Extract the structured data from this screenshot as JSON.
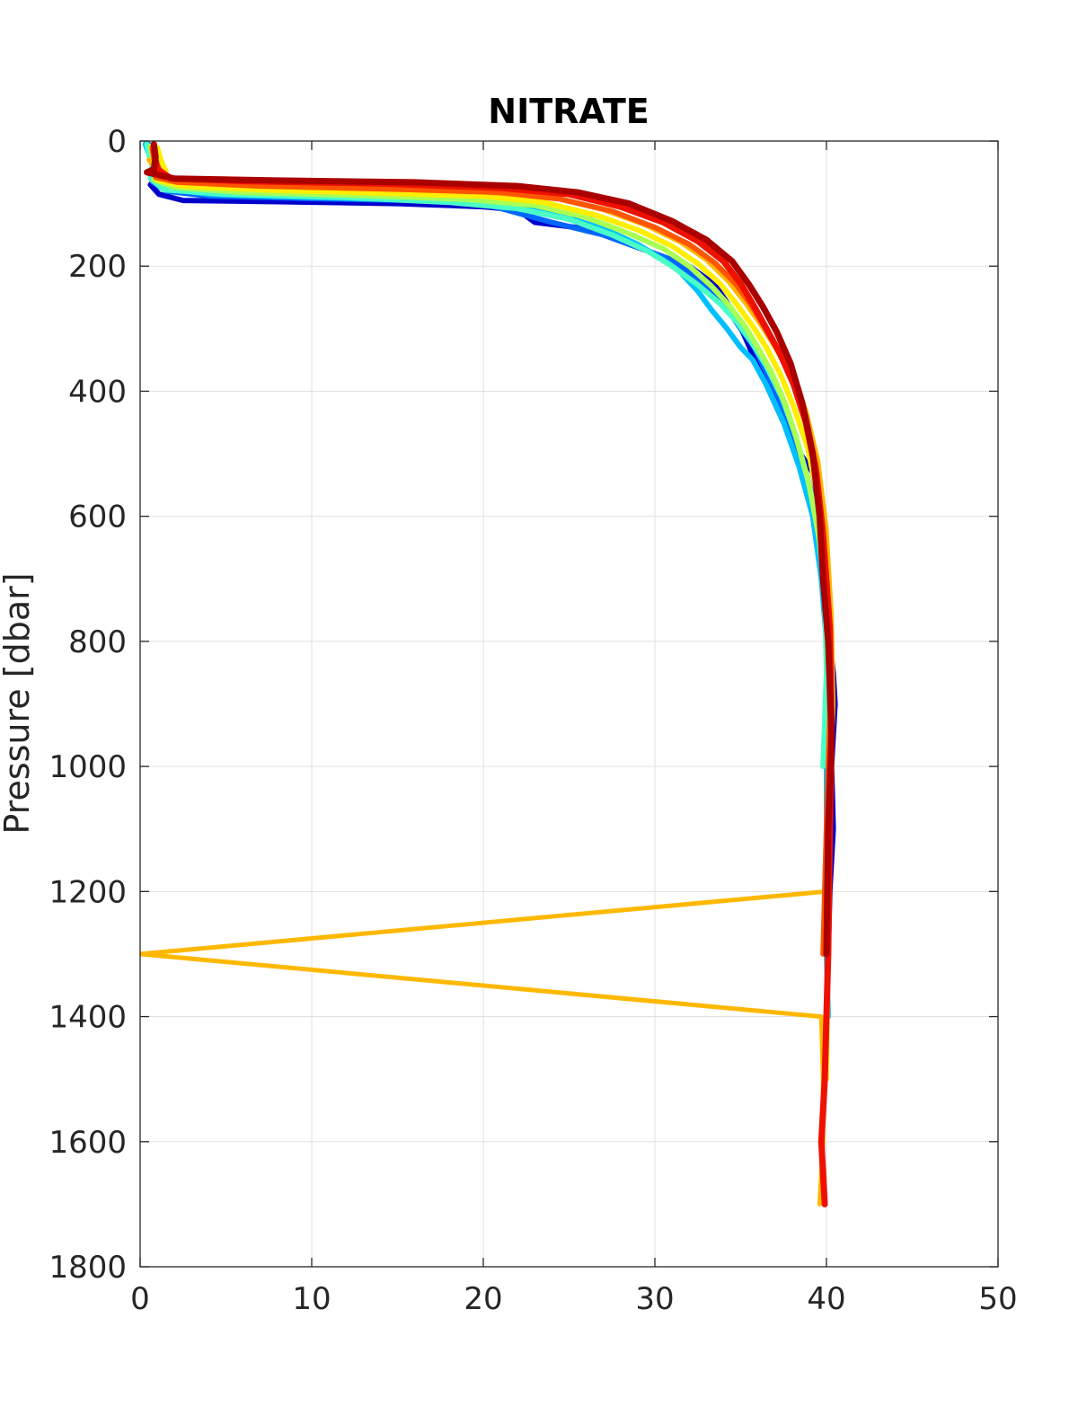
{
  "chart_data": {
    "type": "line",
    "title": "NITRATE",
    "xlabel": "",
    "ylabel": "Pressure [dbar]",
    "xlim": [
      0,
      50
    ],
    "ylim": [
      0,
      1800
    ],
    "y_reversed": true,
    "grid": true,
    "xticks": [
      "0",
      "10",
      "20",
      "30",
      "40",
      "50"
    ],
    "yticks": [
      "0",
      "200",
      "400",
      "600",
      "800",
      "1000",
      "1200",
      "1400",
      "1600",
      "1800"
    ],
    "series": [
      {
        "color": "#0000cd",
        "x": [
          0.8,
          0.9,
          1.2,
          0.6,
          1.1,
          2.5,
          8,
          15,
          20,
          22,
          23,
          26,
          28,
          30,
          32,
          33.5,
          34.5,
          35.2,
          36,
          37,
          38,
          39.2,
          39.7,
          40,
          40.2,
          40.4,
          40.5,
          40.3,
          40.4,
          40.2,
          40.1,
          40.0
        ],
        "y": [
          10,
          30,
          50,
          70,
          85,
          95,
          97,
          100,
          105,
          110,
          130,
          140,
          160,
          180,
          200,
          230,
          270,
          310,
          360,
          420,
          480,
          530,
          600,
          700,
          800,
          850,
          900,
          1000,
          1100,
          1200,
          1300,
          1400
        ]
      },
      {
        "color": "#0066ff",
        "x": [
          0.5,
          0.6,
          0.9,
          0.7,
          1.5,
          4,
          10,
          16,
          20,
          22,
          24,
          27,
          29,
          31,
          32.5,
          34,
          35,
          35.8,
          36.5,
          37.3,
          38,
          38.8,
          39.5,
          40,
          40.2,
          40.3,
          40.1,
          40.0
        ],
        "y": [
          5,
          25,
          45,
          65,
          80,
          88,
          92,
          95,
          100,
          115,
          130,
          150,
          170,
          190,
          220,
          260,
          300,
          330,
          370,
          420,
          470,
          530,
          600,
          700,
          800,
          900,
          1000,
          1100
        ]
      },
      {
        "color": "#00bfff",
        "x": [
          0.3,
          0.5,
          0.8,
          0.6,
          1.3,
          4,
          10,
          17,
          21,
          24,
          27,
          29,
          30.5,
          31.5,
          32.5,
          33.3,
          34.2,
          35,
          35.7,
          36.5,
          37.5,
          38.4,
          39.2,
          39.7,
          40,
          40.1,
          40.0,
          40.0,
          39.9,
          40.0,
          40.1
        ],
        "y": [
          5,
          20,
          40,
          60,
          75,
          85,
          90,
          95,
          100,
          115,
          140,
          165,
          190,
          210,
          240,
          270,
          300,
          330,
          350,
          390,
          450,
          520,
          600,
          700,
          800,
          900,
          1000,
          1100,
          1200,
          1300,
          1400
        ]
      },
      {
        "color": "#4affc6",
        "x": [
          0.4,
          0.5,
          0.7,
          0.6,
          1.4,
          5,
          12,
          18,
          22,
          25,
          27.5,
          29.5,
          31,
          32.5,
          33.8,
          34.8,
          35.6,
          36.5,
          37.4,
          38.2,
          38.9,
          39.5,
          39.9,
          40.0,
          39.8
        ],
        "y": [
          5,
          20,
          40,
          60,
          78,
          85,
          90,
          98,
          108,
          125,
          150,
          175,
          200,
          230,
          260,
          290,
          320,
          360,
          410,
          470,
          540,
          620,
          720,
          850,
          1000
        ]
      },
      {
        "color": "#aaff55",
        "x": [
          0.6,
          0.7,
          1.0,
          0.8,
          2,
          6,
          13,
          19,
          23,
          26,
          28.5,
          30.5,
          32,
          33.3,
          34.4,
          35.3,
          36,
          36.8,
          37.6,
          38.3,
          39,
          39.6,
          40,
          40.2,
          40.1,
          40.0
        ],
        "y": [
          8,
          25,
          45,
          62,
          74,
          82,
          87,
          93,
          103,
          122,
          148,
          172,
          200,
          232,
          265,
          298,
          330,
          370,
          420,
          480,
          550,
          640,
          750,
          900,
          1050,
          1200
        ]
      },
      {
        "color": "#ffee00",
        "x": [
          1.0,
          1.2,
          1.5,
          1.0,
          2.5,
          7,
          14,
          20,
          23.5,
          26.5,
          29,
          31,
          32.5,
          33.8,
          34.8,
          35.7,
          36.5,
          37.3,
          38.1,
          38.9,
          39.5,
          40.0,
          40.3,
          40.2,
          40.1,
          40.0
        ],
        "y": [
          10,
          30,
          48,
          62,
          72,
          78,
          83,
          88,
          98,
          118,
          142,
          168,
          196,
          228,
          262,
          296,
          330,
          372,
          425,
          490,
          570,
          680,
          820,
          1000,
          1250,
          1500
        ]
      },
      {
        "color": "#ffb800",
        "x": [
          0.5,
          0.9,
          1.2,
          2,
          5,
          12,
          19,
          24,
          27,
          29.5,
          31.5,
          33,
          34.3,
          35.3,
          36.2,
          37,
          37.9,
          38.8,
          39.5,
          40.0,
          40.3,
          40.4,
          40.2,
          40.0,
          0,
          39.7,
          39.8,
          39.8,
          39.6
        ],
        "y": [
          30,
          45,
          55,
          65,
          70,
          75,
          80,
          90,
          110,
          135,
          162,
          190,
          225,
          260,
          295,
          330,
          375,
          430,
          510,
          620,
          760,
          900,
          1050,
          1200,
          1300,
          1400,
          1500,
          1600,
          1700
        ]
      },
      {
        "color": "#ff5500",
        "x": [
          0.7,
          0.8,
          1.1,
          0.9,
          2.2,
          7,
          15,
          21,
          24.5,
          27.5,
          30,
          32,
          33.5,
          34.7,
          35.6,
          36.4,
          37.2,
          38.0,
          38.8,
          39.4,
          39.8,
          40.1,
          40.2,
          40.0,
          39.8
        ],
        "y": [
          10,
          28,
          45,
          58,
          66,
          72,
          77,
          82,
          93,
          112,
          138,
          165,
          195,
          228,
          262,
          298,
          335,
          380,
          440,
          520,
          620,
          760,
          920,
          1100,
          1300
        ]
      },
      {
        "color": "#ee1100",
        "x": [
          0.8,
          0.9,
          1.0,
          1.8,
          6,
          14,
          21,
          25,
          28,
          30.5,
          32.5,
          34,
          35,
          35.8,
          36.5,
          37.3,
          38.1,
          38.8,
          39.4,
          39.8,
          40.2,
          40.3,
          40.2,
          40.1,
          39.9,
          39.7,
          39.9
        ],
        "y": [
          15,
          30,
          45,
          60,
          64,
          68,
          75,
          85,
          105,
          130,
          160,
          192,
          228,
          265,
          300,
          340,
          390,
          450,
          530,
          630,
          780,
          950,
          1100,
          1300,
          1500,
          1600,
          1700
        ]
      },
      {
        "color": "#aa0000",
        "x": [
          0.8,
          0.9,
          0.8,
          0.4,
          2,
          8,
          16,
          22,
          25.5,
          28.5,
          31,
          33,
          34.5,
          35.5,
          36.3,
          37.1,
          37.9,
          38.6,
          39.2,
          39.6,
          39.8,
          40.1,
          40.3,
          40.1,
          40.0
        ],
        "y": [
          5,
          25,
          45,
          50,
          60,
          63,
          66,
          72,
          82,
          100,
          128,
          158,
          192,
          230,
          265,
          305,
          355,
          420,
          500,
          600,
          700,
          800,
          950,
          1100,
          1300
        ]
      }
    ]
  }
}
